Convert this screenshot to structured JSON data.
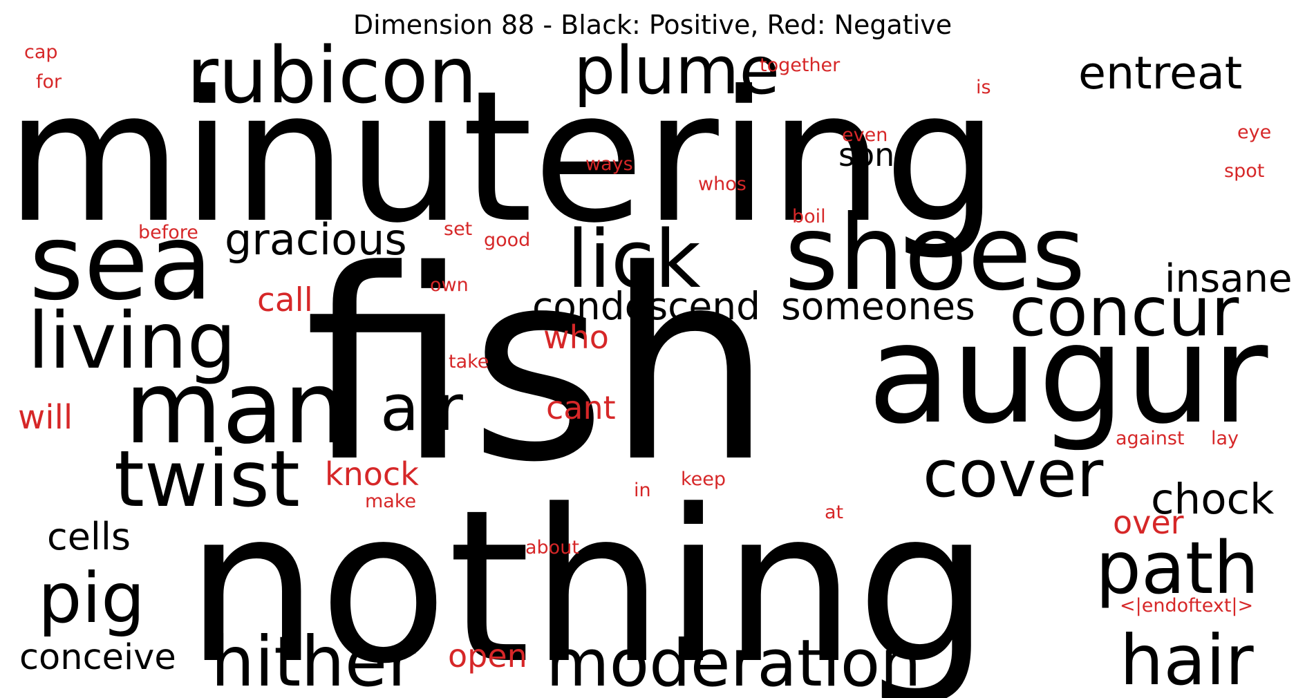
{
  "title": "Dimension 88 - Black: Positive, Red: Negative",
  "colors": {
    "positive": "#000000",
    "negative": "#d62728",
    "background": "#ffffff"
  },
  "words": [
    {
      "text": "minutering",
      "polarity": "positive"
    },
    {
      "text": "fish",
      "polarity": "positive"
    },
    {
      "text": "nothing",
      "polarity": "positive"
    },
    {
      "text": "augur",
      "polarity": "positive"
    },
    {
      "text": "shoes",
      "polarity": "positive"
    },
    {
      "text": "sea",
      "polarity": "positive"
    },
    {
      "text": "man",
      "polarity": "positive"
    },
    {
      "text": "rubicon",
      "polarity": "positive"
    },
    {
      "text": "plume",
      "polarity": "positive"
    },
    {
      "text": "lick",
      "polarity": "positive"
    },
    {
      "text": "living",
      "polarity": "positive"
    },
    {
      "text": "concur",
      "polarity": "positive"
    },
    {
      "text": "cover",
      "polarity": "positive"
    },
    {
      "text": "twist",
      "polarity": "positive"
    },
    {
      "text": "path",
      "polarity": "positive"
    },
    {
      "text": "moderation",
      "polarity": "positive"
    },
    {
      "text": "hither",
      "polarity": "positive"
    },
    {
      "text": "hair",
      "polarity": "positive"
    },
    {
      "text": "pig",
      "polarity": "positive"
    },
    {
      "text": "air",
      "polarity": "positive"
    },
    {
      "text": "entreat",
      "polarity": "positive"
    },
    {
      "text": "gracious",
      "polarity": "positive"
    },
    {
      "text": "condescend",
      "polarity": "positive"
    },
    {
      "text": "someones",
      "polarity": "positive"
    },
    {
      "text": "insane",
      "polarity": "positive"
    },
    {
      "text": "chock",
      "polarity": "positive"
    },
    {
      "text": "son",
      "polarity": "positive"
    },
    {
      "text": "cells",
      "polarity": "positive"
    },
    {
      "text": "conceive",
      "polarity": "positive"
    },
    {
      "text": "call",
      "polarity": "negative"
    },
    {
      "text": "who",
      "polarity": "negative"
    },
    {
      "text": "cant",
      "polarity": "negative"
    },
    {
      "text": "knock",
      "polarity": "negative"
    },
    {
      "text": "will",
      "polarity": "negative"
    },
    {
      "text": "open",
      "polarity": "negative"
    },
    {
      "text": "over",
      "polarity": "negative"
    },
    {
      "text": "cap",
      "polarity": "negative"
    },
    {
      "text": "for",
      "polarity": "negative"
    },
    {
      "text": "together",
      "polarity": "negative"
    },
    {
      "text": "is",
      "polarity": "negative"
    },
    {
      "text": "even",
      "polarity": "negative"
    },
    {
      "text": "eye",
      "polarity": "negative"
    },
    {
      "text": "ways",
      "polarity": "negative"
    },
    {
      "text": "whos",
      "polarity": "negative"
    },
    {
      "text": "spot",
      "polarity": "negative"
    },
    {
      "text": "before",
      "polarity": "negative"
    },
    {
      "text": "set",
      "polarity": "negative"
    },
    {
      "text": "good",
      "polarity": "negative"
    },
    {
      "text": "boil",
      "polarity": "negative"
    },
    {
      "text": "own",
      "polarity": "negative"
    },
    {
      "text": "take",
      "polarity": "negative"
    },
    {
      "text": "make",
      "polarity": "negative"
    },
    {
      "text": "in",
      "polarity": "negative"
    },
    {
      "text": "keep",
      "polarity": "negative"
    },
    {
      "text": "about",
      "polarity": "negative"
    },
    {
      "text": "at",
      "polarity": "negative"
    },
    {
      "text": "against",
      "polarity": "negative"
    },
    {
      "text": "lay",
      "polarity": "negative"
    },
    {
      "text": "<|endoftext|>",
      "polarity": "negative"
    }
  ]
}
